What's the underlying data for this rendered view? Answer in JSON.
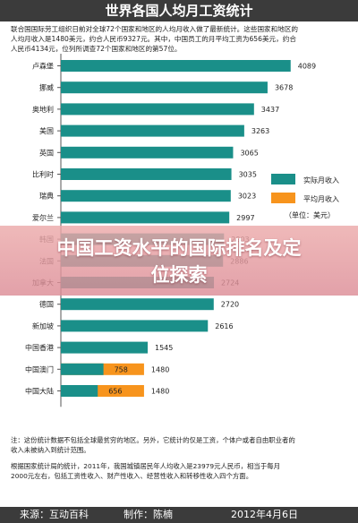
{
  "header": {
    "title": "世界各国人均月工资统计"
  },
  "intro": {
    "line1": "联合国国际劳工组织日前对全球72个国家和地区的人均月收入做了最新统计。这些国家和地区的",
    "line2": "人均月收入是1480美元，约合人民币9327元。其中，中国员工的月平均工资为656美元，约合",
    "line3": "人民币4134元，位列所调查72个国家和地区的第57位。"
  },
  "legend": {
    "actual": "实际月收入",
    "average": "平均月收入",
    "unit": "（单位：美元）"
  },
  "colors": {
    "actual": "#1a8f89",
    "average": "#f7941d",
    "text": "#222222",
    "header": "#3b3b3b"
  },
  "chart_data": {
    "type": "bar",
    "orientation": "horizontal",
    "categories": [
      "卢森堡",
      "挪威",
      "奥地利",
      "美国",
      "英国",
      "比利时",
      "瑞典",
      "爱尔兰",
      "韩国",
      "法国",
      "加拿大",
      "德国",
      "新加坡",
      "中国香港",
      "中国澳门",
      "中国大陆"
    ],
    "series": [
      {
        "name": "实际月收入",
        "values": [
          4089,
          3678,
          3437,
          3263,
          3065,
          3035,
          3023,
          2997,
          2903,
          2886,
          2724,
          2720,
          2616,
          1545,
          758,
          656
        ]
      },
      {
        "name": "平均月收入",
        "values": [
          null,
          null,
          null,
          null,
          null,
          null,
          null,
          null,
          null,
          null,
          null,
          null,
          null,
          null,
          1480,
          1480
        ]
      }
    ],
    "data_labels": [
      "4089",
      "3678",
      "3437",
      "3263",
      "3065",
      "3035",
      "3023",
      "2997",
      "2903",
      "2886",
      "2724",
      "2720",
      "2616",
      "1545",
      "1480",
      "1480"
    ],
    "inner_labels": [
      "",
      "",
      "",
      "",
      "",
      "",
      "",
      "",
      "",
      "",
      "",
      "",
      "",
      "",
      "758",
      "656"
    ],
    "xlim": [
      0,
      4300
    ],
    "grid": false,
    "legend_position": "right"
  },
  "footnote": {
    "line1": "注：这份统计数据不包括全球最贫穷的地区。另外，它统计的仅是工资，个体户或者自由职业者的",
    "line2": "收入未被纳入到统计范围。",
    "line3": "根据国家统计局的统计，2011年，我国城镇居民年人均收入是23979元人民币，相当于每月",
    "line4": "2000元左右，包括工资性收入、财产性收入、经营性收入和转移性收入四个方面。"
  },
  "footer": {
    "source": "来源：互动百科",
    "author": "制作：陈楠",
    "date": "2012年4月6日"
  },
  "banner": {
    "line1": "中国工资水平的国际排名及定",
    "line2": "位探索"
  }
}
